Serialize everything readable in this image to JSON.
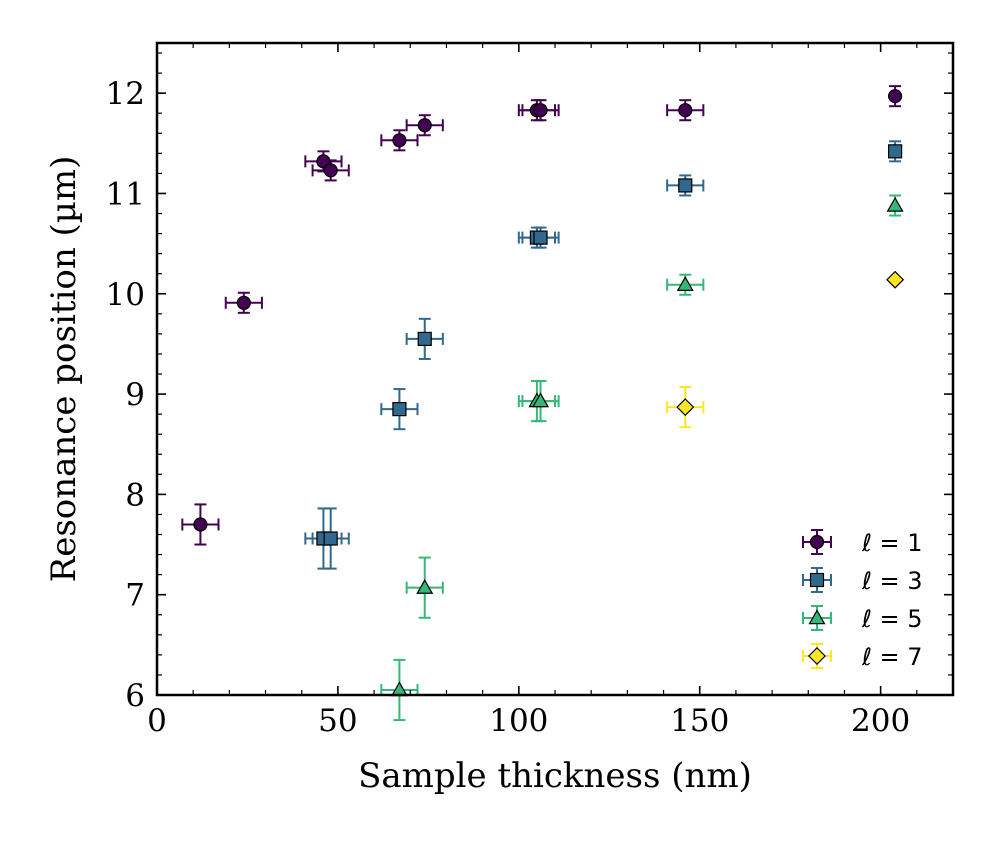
{
  "chart_data": {
    "type": "scatter",
    "title": "",
    "xlabel": "Sample thickness (nm)",
    "ylabel": "Resonance position (µm)",
    "xlim": [
      0,
      220
    ],
    "ylim": [
      6,
      12.5
    ],
    "xticks": [
      0,
      50,
      100,
      150,
      200
    ],
    "yticks": [
      6,
      7,
      8,
      9,
      10,
      11,
      12
    ],
    "xtick_labels": [
      "0",
      "50",
      "100",
      "150",
      "200"
    ],
    "ytick_labels": [
      "6",
      "7",
      "8",
      "9",
      "10",
      "11",
      "12"
    ],
    "legend_position": "bottom-right",
    "series": [
      {
        "name": "ℓ = 1",
        "marker": "circle",
        "color": "#440154",
        "x": [
          12,
          24,
          46,
          48,
          67,
          74,
          105,
          106,
          146,
          204
        ],
        "y": [
          7.7,
          9.91,
          11.32,
          11.23,
          11.53,
          11.68,
          11.83,
          11.83,
          11.83,
          11.97
        ],
        "xerr": [
          5,
          5,
          5,
          5,
          5,
          5,
          5,
          5,
          5,
          0
        ],
        "yerr": [
          0.2,
          0.1,
          0.1,
          0.1,
          0.1,
          0.1,
          0.1,
          0.1,
          0.1,
          0.1
        ]
      },
      {
        "name": "ℓ = 3",
        "marker": "square",
        "color": "#31688e",
        "x": [
          46,
          48,
          67,
          74,
          105,
          106,
          146,
          204
        ],
        "y": [
          7.56,
          7.56,
          8.85,
          9.55,
          10.56,
          10.56,
          11.08,
          11.42
        ],
        "xerr": [
          5,
          5,
          5,
          5,
          5,
          5,
          5,
          0
        ],
        "yerr": [
          0.3,
          0.3,
          0.2,
          0.2,
          0.1,
          0.1,
          0.1,
          0.1
        ]
      },
      {
        "name": "ℓ = 5",
        "marker": "triangle",
        "color": "#35b779",
        "x": [
          67,
          74,
          105,
          106,
          146,
          204
        ],
        "y": [
          6.05,
          7.07,
          8.93,
          8.93,
          10.09,
          10.88
        ],
        "xerr": [
          5,
          5,
          5,
          5,
          5,
          0
        ],
        "yerr": [
          0.3,
          0.3,
          0.2,
          0.2,
          0.1,
          0.1
        ]
      },
      {
        "name": "ℓ = 7",
        "marker": "diamond",
        "color": "#fde725",
        "x": [
          146,
          204
        ],
        "y": [
          8.87,
          10.14
        ],
        "xerr": [
          5,
          0
        ],
        "yerr": [
          0.2,
          0
        ]
      }
    ]
  }
}
